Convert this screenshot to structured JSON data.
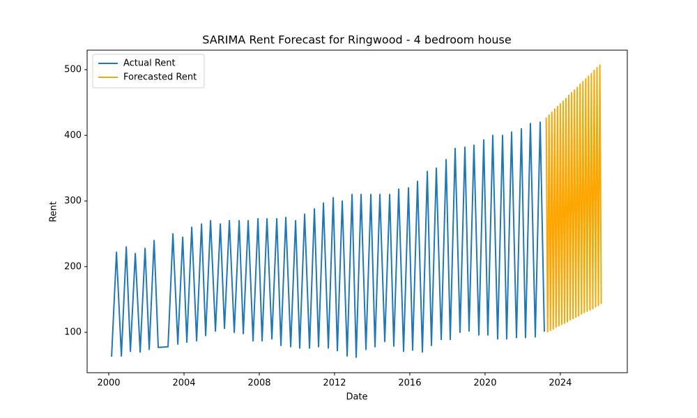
{
  "chart_data": {
    "type": "line",
    "title": "SARIMA Rent Forecast for Ringwood - 4 bedroom house",
    "x_label": "Date",
    "y_label": "Rent",
    "xlim": [
      1998.85,
      2027.56
    ],
    "xticks": [
      2000,
      2004,
      2008,
      2012,
      2016,
      2020,
      2024
    ],
    "ylim": [
      38.5,
      529.7
    ],
    "yticks": [
      100,
      200,
      300,
      400,
      500
    ],
    "grid": false,
    "legend": "upper left",
    "series": [
      {
        "name": "Actual Rent",
        "color": "#1f77b4",
        "x": [
          2000.15,
          2000.41,
          2000.67,
          2000.93,
          2001.15,
          2001.41,
          2001.67,
          2001.93,
          2002.15,
          2002.41,
          2002.63,
          2003.15,
          2003.41,
          2003.67,
          2003.93,
          2004.15,
          2004.41,
          2004.67,
          2004.93,
          2005.15,
          2005.41,
          2005.67,
          2005.93,
          2006.15,
          2006.41,
          2006.67,
          2006.93,
          2007.15,
          2007.41,
          2007.67,
          2007.93,
          2008.15,
          2008.41,
          2008.67,
          2008.93,
          2009.15,
          2009.41,
          2009.67,
          2009.93,
          2010.15,
          2010.41,
          2010.67,
          2010.93,
          2011.15,
          2011.41,
          2011.67,
          2011.93,
          2012.15,
          2012.41,
          2012.67,
          2012.93,
          2013.15,
          2013.41,
          2013.67,
          2013.93,
          2014.15,
          2014.41,
          2014.67,
          2014.93,
          2015.15,
          2015.41,
          2015.67,
          2015.93,
          2016.15,
          2016.41,
          2016.67,
          2016.93,
          2017.15,
          2017.41,
          2017.67,
          2017.93,
          2018.15,
          2018.41,
          2018.67,
          2018.93,
          2019.15,
          2019.41,
          2019.67,
          2019.93,
          2020.15,
          2020.41,
          2020.67,
          2020.93,
          2021.15,
          2021.41,
          2021.67,
          2021.93,
          2022.15,
          2022.41,
          2022.67,
          2022.93,
          2023.15
        ],
        "values": [
          63,
          222,
          64,
          230,
          71,
          220,
          70,
          228,
          74,
          240,
          77,
          78,
          250,
          82,
          245,
          85,
          260,
          87,
          265,
          95,
          270,
          102,
          265,
          106,
          270,
          100,
          270,
          98,
          270,
          87,
          273,
          87,
          273,
          90,
          273,
          80,
          275,
          78,
          270,
          76,
          280,
          76,
          288,
          78,
          297,
          76,
          305,
          72,
          300,
          64,
          310,
          62,
          310,
          74,
          310,
          78,
          310,
          86,
          310,
          79,
          318,
          71,
          320,
          73,
          330,
          70,
          345,
          80,
          350,
          89,
          363,
          89,
          380,
          100,
          382,
          102,
          385,
          96,
          393,
          96,
          400,
          90,
          400,
          90,
          405,
          92,
          410,
          92,
          418,
          93,
          420,
          101
        ]
      },
      {
        "name": "Forecasted Rent",
        "color": "#ffa500",
        "x": [
          2023.25,
          2023.325,
          2023.4,
          2023.475,
          2023.55,
          2023.625,
          2023.7,
          2023.775,
          2023.85,
          2023.925,
          2024.0,
          2024.075,
          2024.15,
          2024.225,
          2024.3,
          2024.375,
          2024.45,
          2024.525,
          2024.6,
          2024.675,
          2024.75,
          2024.825,
          2024.9,
          2024.975,
          2025.05,
          2025.125,
          2025.2,
          2025.275,
          2025.35,
          2025.425,
          2025.5,
          2025.575,
          2025.65,
          2025.725,
          2025.8,
          2025.875,
          2025.95,
          2026.025,
          2026.1,
          2026.175
        ],
        "values": [
          427,
          101,
          431,
          103,
          435,
          105,
          440,
          108,
          444,
          110,
          448,
          112,
          452,
          114,
          456,
          116,
          461,
          119,
          465,
          121,
          469,
          123,
          473,
          125,
          478,
          128,
          482,
          130,
          486,
          132,
          490,
          134,
          494,
          136,
          499,
          139,
          503,
          141,
          507,
          143
        ]
      }
    ]
  }
}
